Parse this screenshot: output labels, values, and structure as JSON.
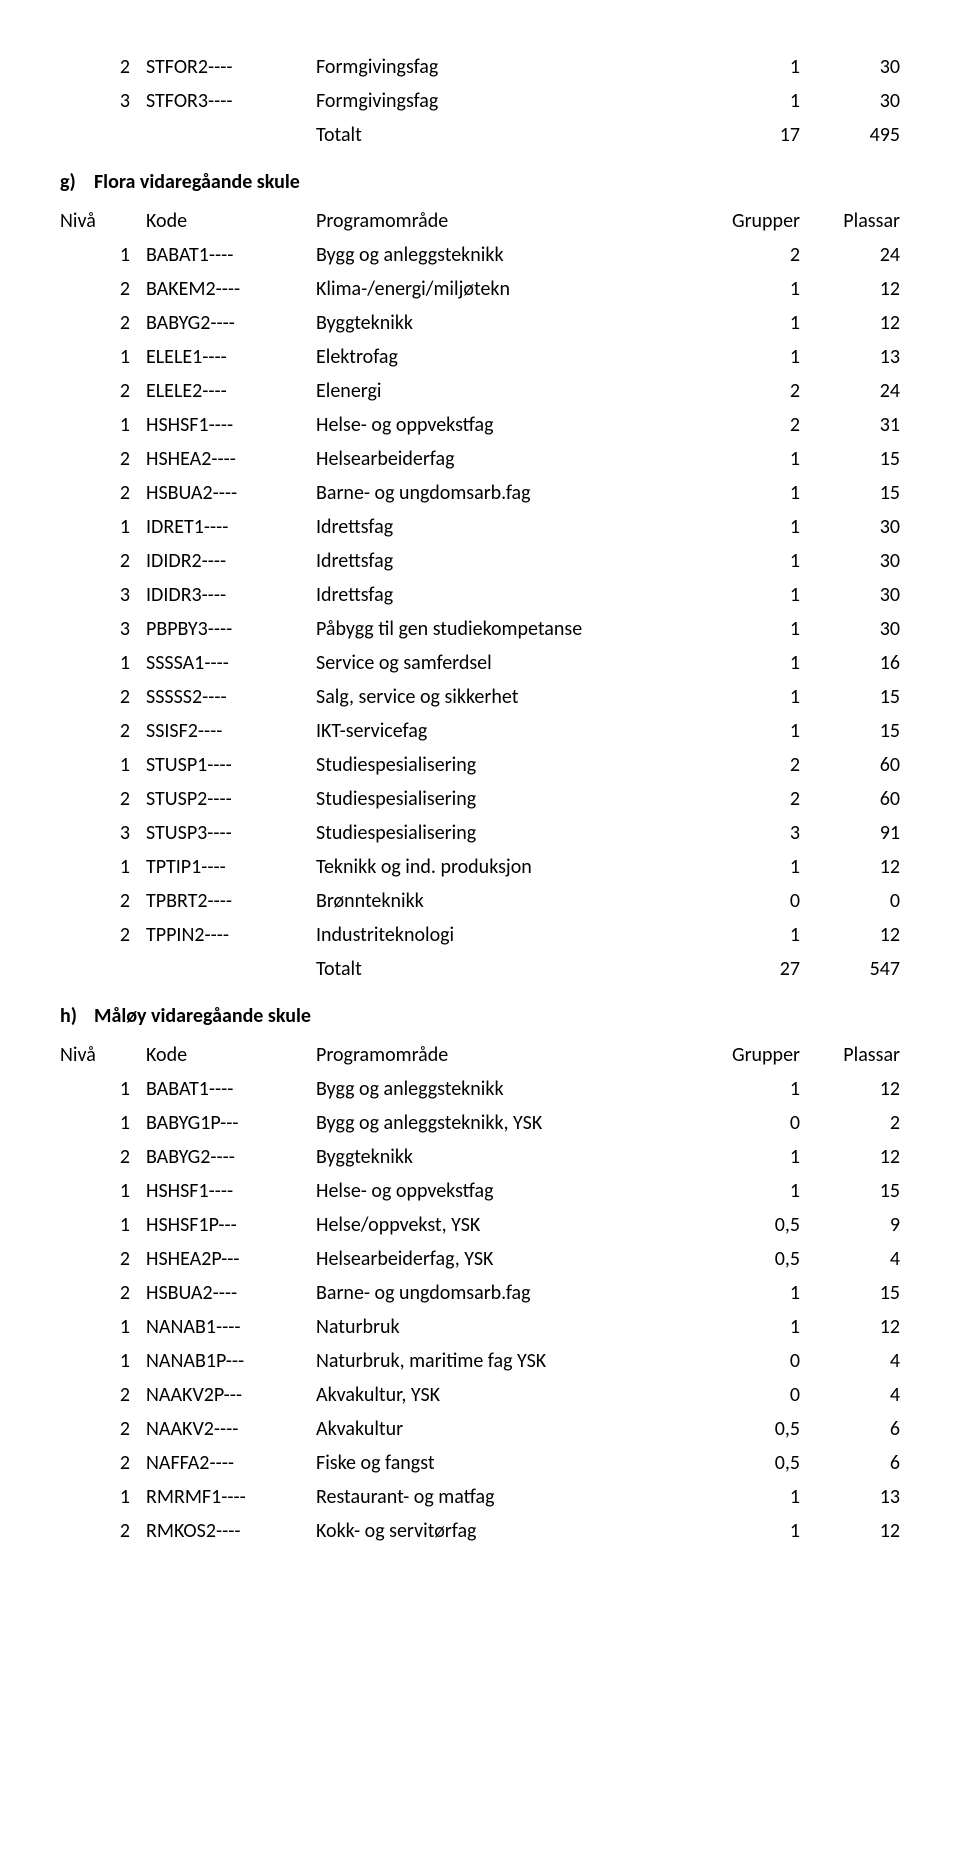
{
  "headers": {
    "niva": "Nivå",
    "kode": "Kode",
    "prog": "Programområde",
    "grupper": "Grupper",
    "plassar": "Plassar"
  },
  "totalt_label": "Totalt",
  "top_rows": [
    {
      "n": "2",
      "k": "STFOR2----",
      "p": "Formgivingsfag",
      "g": "1",
      "s": "30"
    },
    {
      "n": "3",
      "k": "STFOR3----",
      "p": "Formgivingsfag",
      "g": "1",
      "s": "30"
    }
  ],
  "top_total": {
    "g": "17",
    "s": "495"
  },
  "sections": [
    {
      "lead": "g)",
      "title": "Flora vidaregåande skule",
      "rows": [
        {
          "n": "1",
          "k": "BABAT1----",
          "p": "Bygg og anleggsteknikk",
          "g": "2",
          "s": "24"
        },
        {
          "n": "2",
          "k": "BAKEM2----",
          "p": "Klima-/energi/miljøtekn",
          "g": "1",
          "s": "12"
        },
        {
          "n": "2",
          "k": "BABYG2----",
          "p": "Byggteknikk",
          "g": "1",
          "s": "12"
        },
        {
          "n": "1",
          "k": "ELELE1----",
          "p": "Elektrofag",
          "g": "1",
          "s": "13"
        },
        {
          "n": "2",
          "k": "ELELE2----",
          "p": "Elenergi",
          "g": "2",
          "s": "24"
        },
        {
          "n": "1",
          "k": "HSHSF1----",
          "p": "Helse- og oppvekstfag",
          "g": "2",
          "s": "31"
        },
        {
          "n": "2",
          "k": "HSHEA2----",
          "p": "Helsearbeiderfag",
          "g": "1",
          "s": "15"
        },
        {
          "n": "2",
          "k": "HSBUA2----",
          "p": "Barne- og ungdomsarb.fag",
          "g": "1",
          "s": "15"
        },
        {
          "n": "1",
          "k": "IDRET1----",
          "p": "Idrettsfag",
          "g": "1",
          "s": "30"
        },
        {
          "n": "2",
          "k": "IDIDR2----",
          "p": "Idrettsfag",
          "g": "1",
          "s": "30"
        },
        {
          "n": "3",
          "k": "IDIDR3----",
          "p": "Idrettsfag",
          "g": "1",
          "s": "30"
        },
        {
          "n": "3",
          "k": "PBPBY3----",
          "p": "Påbygg til gen studiekompetanse",
          "g": "1",
          "s": "30"
        },
        {
          "n": "1",
          "k": "SSSSA1----",
          "p": "Service og samferdsel",
          "g": "1",
          "s": "16"
        },
        {
          "n": "2",
          "k": "SSSSS2----",
          "p": "Salg, service og sikkerhet",
          "g": "1",
          "s": "15"
        },
        {
          "n": "2",
          "k": "SSISF2----",
          "p": "IKT-servicefag",
          "g": "1",
          "s": "15"
        },
        {
          "n": "1",
          "k": "STUSP1----",
          "p": "Studiespesialisering",
          "g": "2",
          "s": "60"
        },
        {
          "n": "2",
          "k": "STUSP2----",
          "p": "Studiespesialisering",
          "g": "2",
          "s": "60"
        },
        {
          "n": "3",
          "k": "STUSP3----",
          "p": "Studiespesialisering",
          "g": "3",
          "s": "91"
        },
        {
          "n": "1",
          "k": "TPTIP1----",
          "p": "Teknikk og ind. produksjon",
          "g": "1",
          "s": "12"
        },
        {
          "n": "2",
          "k": "TPBRT2----",
          "p": "Brønnteknikk",
          "g": "0",
          "s": "0"
        },
        {
          "n": "2",
          "k": "TPPIN2----",
          "p": "Industriteknologi",
          "g": "1",
          "s": "12"
        }
      ],
      "total": {
        "g": "27",
        "s": "547"
      }
    },
    {
      "lead": "h)",
      "title": "Måløy vidaregåande skule",
      "rows": [
        {
          "n": "1",
          "k": "BABAT1----",
          "p": "Bygg og anleggsteknikk",
          "g": "1",
          "s": "12"
        },
        {
          "n": "1",
          "k": "BABYG1P---",
          "p": "Bygg og anleggsteknikk, YSK",
          "g": "0",
          "s": "2"
        },
        {
          "n": "2",
          "k": "BABYG2----",
          "p": "Byggteknikk",
          "g": "1",
          "s": "12"
        },
        {
          "n": "1",
          "k": "HSHSF1----",
          "p": "Helse- og oppvekstfag",
          "g": "1",
          "s": "15"
        },
        {
          "n": "1",
          "k": "HSHSF1P---",
          "p": "Helse/oppvekst, YSK",
          "g": "0,5",
          "s": "9"
        },
        {
          "n": "2",
          "k": "HSHEA2P---",
          "p": "Helsearbeiderfag, YSK",
          "g": "0,5",
          "s": "4"
        },
        {
          "n": "2",
          "k": "HSBUA2----",
          "p": "Barne- og ungdomsarb.fag",
          "g": "1",
          "s": "15"
        },
        {
          "n": "1",
          "k": "NANAB1----",
          "p": "Naturbruk",
          "g": "1",
          "s": "12"
        },
        {
          "n": "1",
          "k": "NANAB1P---",
          "p": "Naturbruk, maritime fag YSK",
          "g": "0",
          "s": "4"
        },
        {
          "n": "2",
          "k": "NAAKV2P---",
          "p": "Akvakultur, YSK",
          "g": "0",
          "s": "4"
        },
        {
          "n": "2",
          "k": "NAAKV2----",
          "p": "Akvakultur",
          "g": "0,5",
          "s": "6"
        },
        {
          "n": "2",
          "k": "NAFFA2----",
          "p": "Fiske og fangst",
          "g": "0,5",
          "s": "6"
        },
        {
          "n": "1",
          "k": "RMRMF1----",
          "p": "Restaurant- og matfag",
          "g": "1",
          "s": "13"
        },
        {
          "n": "2",
          "k": "RMKOS2----",
          "p": "Kokk- og servitørfag",
          "g": "1",
          "s": "12"
        }
      ]
    }
  ]
}
